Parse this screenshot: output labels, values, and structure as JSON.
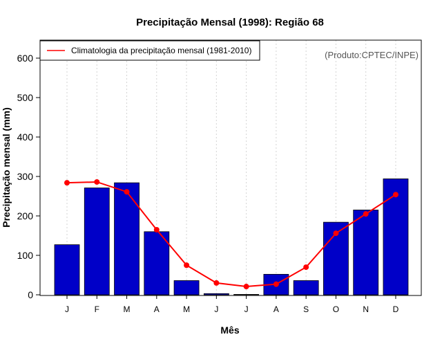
{
  "chart_data": {
    "type": "bar",
    "title": "Precipitação Mensal (1998): Região 68",
    "xlabel": "Mês",
    "ylabel": "Precipitação mensal (mm)",
    "ylim": [
      0,
      640
    ],
    "yticks": [
      0,
      100,
      200,
      300,
      400,
      500,
      600
    ],
    "categories": [
      "J",
      "F",
      "M",
      "A",
      "M",
      "J",
      "J",
      "A",
      "S",
      "O",
      "N",
      "D"
    ],
    "series": [
      {
        "name": "Precipitação mensal (1998)",
        "type": "bar",
        "color": "#0000c8",
        "values": [
          127,
          271,
          284,
          160,
          36,
          3,
          1,
          52,
          36,
          184,
          215,
          294
        ]
      },
      {
        "name": "Climatologia da precipitação mensal (1981-2010)",
        "type": "line",
        "color": "#ff0000",
        "values": [
          284,
          286,
          261,
          165,
          75,
          30,
          21,
          27,
          70,
          156,
          205,
          254
        ]
      }
    ],
    "legend": {
      "entries": [
        "Climatologia da precipitação mensal (1981-2010)"
      ],
      "position": "top-left"
    },
    "annotation": "(Produto:CPTEC/INPE)",
    "grid": "vertical dotted"
  }
}
